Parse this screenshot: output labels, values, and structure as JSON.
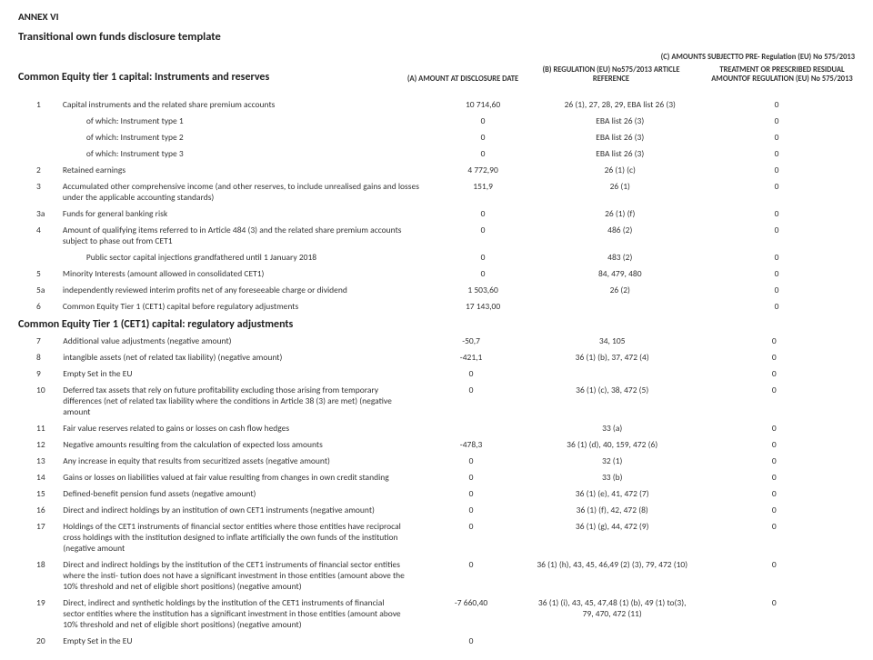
{
  "annex": "ANNEX VI",
  "title": "Transitional own funds disclosure template",
  "top_right": "(C) AMOUNTS SUBJECTTO PRE- Regulation (EU) No 575/2013",
  "header_left": "Common Equity tier 1 capital: Instruments and reserves",
  "col_a": "(A) AMOUNT AT DISCLOSURE DATE",
  "col_b": "(B) REGULATION (EU) No575/2013 ARTICLE REFERENCE",
  "col_c": "TREATMENT OR PRESCRIBED RESIDUAL AMOUNTOF REGULATION (EU) No 575/2013",
  "section2": "Common Equity Tier 1 (CET1) capital: regulatory adjustments",
  "rows": [
    {
      "n": "1",
      "d": "Capital instruments and the related share premium accounts",
      "a": "10 714,60",
      "b": "26 (1), 27, 28, 29, EBA list 26 (3)",
      "c": "0",
      "i": false
    },
    {
      "n": "",
      "d": "of which: Instrument type 1",
      "a": "0",
      "b": "EBA list 26 (3)",
      "c": "0",
      "i": true
    },
    {
      "n": "",
      "d": "of which: Instrument type 2",
      "a": "0",
      "b": "EBA list 26 (3)",
      "c": "0",
      "i": true
    },
    {
      "n": "",
      "d": "of which: Instrument type 3",
      "a": "0",
      "b": "EBA list 26 (3)",
      "c": "0",
      "i": true
    },
    {
      "n": "2",
      "d": "Retained earnings",
      "a": "4 772,90",
      "b": "26 (1) (c)",
      "c": "0",
      "i": false
    },
    {
      "n": "3",
      "d": "Accumulated other comprehensive income (and other reserves, to include unrealised gains and losses under the applicable accounting standards)",
      "a": "151,9",
      "b": "26 (1)",
      "c": "0",
      "i": false
    },
    {
      "n": "3a",
      "d": "Funds for general banking risk",
      "a": "0",
      "b": "26 (1) (f)",
      "c": "0",
      "i": false
    },
    {
      "n": "4",
      "d": "Amount of qualifying items referred to in Article 484 (3) and the related share premium accounts subject to phase out from CET1",
      "a": "0",
      "b": "486 (2)",
      "c": "0",
      "i": false
    },
    {
      "n": "",
      "d": "Public sector capital injections grandfathered until 1 January 2018",
      "a": "0",
      "b": "483 (2)",
      "c": "0",
      "i": true
    },
    {
      "n": "5",
      "d": "Minority Interests (amount allowed in consolidated CET1)",
      "a": "0",
      "b": "84, 479, 480",
      "c": "0",
      "i": false
    },
    {
      "n": "5a",
      "d": "independently reviewed interim profits net of any foreseeable charge or dividend",
      "a": "1 503,60",
      "b": "26 (2)",
      "c": "0",
      "i": false
    },
    {
      "n": "6",
      "d": "Common Equity Tier 1 (CET1) capital before regulatory adjustments",
      "a": "17 143,00",
      "b": "",
      "c": "0",
      "i": false
    }
  ],
  "rows2": [
    {
      "n": "7",
      "d": "Additional value adjustments (negative amount)",
      "a": "-50,7",
      "b": "34, 105",
      "c": "0",
      "i": false
    },
    {
      "n": "8",
      "d": "intangible assets (net of related tax liability) (negative amount)",
      "a": "-421,1",
      "b": "36 (1) (b), 37, 472 (4)",
      "c": "0",
      "i": false
    },
    {
      "n": "9",
      "d": "Empty Set in the EU",
      "a": "0",
      "b": "",
      "c": "0",
      "i": false
    },
    {
      "n": "10",
      "d": "Deferred tax assets that rely on future profitability excluding those arising from temporary differences (net of related tax liability where the conditions in Article 38 (3) are met) (negative amount",
      "a": "0",
      "b": "36 (1) (c), 38, 472 (5)",
      "c": "0",
      "i": false
    },
    {
      "n": "11",
      "d": "Fair value reserves related to gains or losses on cash flow hedges",
      "a": "",
      "b": "33 (a)",
      "c": "0",
      "i": false
    },
    {
      "n": "12",
      "d": "Negative amounts resulting from the calculation of expected loss amounts",
      "a": "-478,3",
      "b": "36 (1) (d), 40, 159, 472 (6)",
      "c": "0",
      "i": false
    },
    {
      "n": "13",
      "d": "Any increase in equity that results from securitized assets (negative amount)",
      "a": "0",
      "b": "32 (1)",
      "c": "0",
      "i": false
    },
    {
      "n": "14",
      "d": "Gains or losses on liabilities valued at fair value resulting from changes in own credit standing",
      "a": "0",
      "b": "33 (b)",
      "c": "0",
      "i": false
    },
    {
      "n": "15",
      "d": "Defined-benefit pension fund assets (negative amount)",
      "a": "0",
      "b": "36 (1) (e), 41, 472 (7)",
      "c": "0",
      "i": false
    },
    {
      "n": "16",
      "d": "Direct and indirect holdings by an institution of own CET1 instruments (negative amount)",
      "a": "0",
      "b": "36 (1) (f), 42, 472 (8)",
      "c": "0",
      "i": false
    },
    {
      "n": "17",
      "d": "Holdings of the CET1 instruments of financial sector entities where those entities have reciprocal cross holdings with the institution designed to inflate artificially the own funds of the institution (negative amount",
      "a": "0",
      "b": "36 (1) (g), 44, 472 (9)",
      "c": "0",
      "i": false
    },
    {
      "n": "18",
      "d": "Direct and indirect holdings by the institution of the CET1 instruments of financial sector entities where the insti- tution does not have a significant investment in those entities (amount above the 10% threshold and net of eligible short positions) (negative amount)",
      "a": "0",
      "b": "36 (1) (h), 43, 45, 46,49 (2) (3), 79, 472 (10)",
      "c": "0",
      "i": false
    },
    {
      "n": "19",
      "d": "Direct, indirect and synthetic holdings by the institution of the CET1 instruments of financial sector entities where the institution has a significant investment in those entities (amount above 10% threshold and net of eligible short positions) (negative amount)",
      "a": "-7 660,40",
      "b": "36 (1) (i), 43, 45, 47,48 (1) (b), 49 (1) to(3), 79, 470, 472 (11)",
      "c": "0",
      "i": false
    },
    {
      "n": "20",
      "d": "Empty Set in the EU",
      "a": "0",
      "b": "",
      "c": "",
      "i": false
    }
  ]
}
